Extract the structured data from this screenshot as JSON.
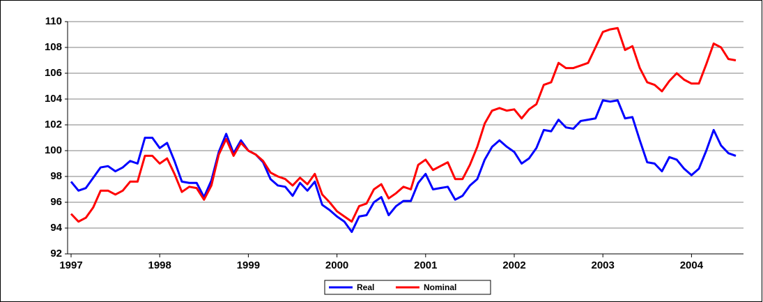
{
  "chart_data": {
    "type": "line",
    "categories": [
      "1997",
      null,
      null,
      null,
      null,
      null,
      null,
      null,
      null,
      null,
      null,
      null,
      "1998",
      null,
      null,
      null,
      null,
      null,
      null,
      null,
      null,
      null,
      null,
      null,
      "1999",
      null,
      null,
      null,
      null,
      null,
      null,
      null,
      null,
      null,
      null,
      null,
      "2000",
      null,
      null,
      null,
      null,
      null,
      null,
      null,
      null,
      null,
      null,
      null,
      "2001",
      null,
      null,
      null,
      null,
      null,
      null,
      null,
      null,
      null,
      null,
      null,
      "2002",
      null,
      null,
      null,
      null,
      null,
      null,
      null,
      null,
      null,
      null,
      null,
      "2003",
      null,
      null,
      null,
      null,
      null,
      null,
      null,
      null,
      null,
      null,
      null,
      "2004",
      null,
      null,
      null,
      null,
      null,
      null
    ],
    "series": [
      {
        "name": "Real",
        "color": "#0000ff",
        "values": [
          97.6,
          96.9,
          97.1,
          97.9,
          98.7,
          98.8,
          98.4,
          98.7,
          99.2,
          99.0,
          101.0,
          101.0,
          100.2,
          100.6,
          99.2,
          97.6,
          97.5,
          97.5,
          96.4,
          97.7,
          99.9,
          101.3,
          99.8,
          100.8,
          100.0,
          99.7,
          99.1,
          97.8,
          97.3,
          97.2,
          96.5,
          97.5,
          96.9,
          97.6,
          95.8,
          95.4,
          94.9,
          94.5,
          93.7,
          94.9,
          95.0,
          96.0,
          96.4,
          95.0,
          95.7,
          96.1,
          96.1,
          97.5,
          98.2,
          97.0,
          97.1,
          97.2,
          96.2,
          96.5,
          97.3,
          97.8,
          99.3,
          100.3,
          100.8,
          100.3,
          99.9,
          99.0,
          99.4,
          100.2,
          101.6,
          101.5,
          102.4,
          101.8,
          101.7,
          102.3,
          102.4,
          102.5,
          103.9,
          103.8,
          103.9,
          102.5,
          102.6,
          100.8,
          99.1,
          99.0,
          98.4,
          99.5,
          99.3,
          98.6,
          98.1,
          98.6,
          100.0,
          101.6,
          100.4,
          99.8,
          99.6
        ]
      },
      {
        "name": "Nominal",
        "color": "#ff0000",
        "values": [
          95.1,
          94.5,
          94.8,
          95.6,
          96.9,
          96.9,
          96.6,
          96.9,
          97.6,
          97.6,
          99.6,
          99.6,
          99.0,
          99.4,
          98.2,
          96.8,
          97.2,
          97.1,
          96.2,
          97.3,
          99.7,
          100.9,
          99.6,
          100.6,
          100.0,
          99.7,
          99.2,
          98.3,
          98.0,
          97.8,
          97.3,
          97.9,
          97.4,
          98.2,
          96.6,
          96.0,
          95.3,
          94.9,
          94.5,
          95.7,
          95.9,
          97.0,
          97.4,
          96.3,
          96.7,
          97.2,
          97.0,
          98.9,
          99.3,
          98.5,
          98.8,
          99.1,
          97.8,
          97.8,
          98.9,
          100.3,
          102.1,
          103.1,
          103.3,
          103.1,
          103.2,
          102.5,
          103.2,
          103.6,
          105.1,
          105.3,
          106.8,
          106.4,
          106.4,
          106.6,
          106.8,
          108.0,
          109.2,
          109.4,
          109.5,
          107.8,
          108.1,
          106.4,
          105.3,
          105.1,
          104.6,
          105.4,
          106.0,
          105.5,
          105.2,
          105.2,
          106.7,
          108.3,
          108.0,
          107.1,
          107.0
        ]
      }
    ],
    "ylim": [
      92,
      110
    ],
    "yticks": [
      92,
      94,
      96,
      98,
      100,
      102,
      104,
      106,
      108,
      110
    ],
    "grid": true,
    "legend": "bottom"
  }
}
